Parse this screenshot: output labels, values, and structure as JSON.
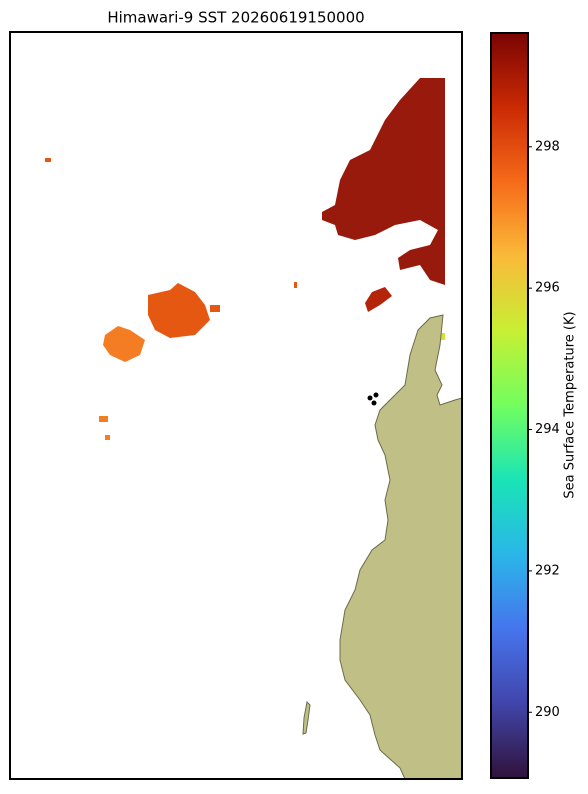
{
  "title": "Himawari-9 SST 20260619150000",
  "colorbar": {
    "label": "Sea Surface Temperature (K)",
    "range": [
      289.07,
      299.61
    ],
    "ticks": [
      290,
      292,
      294,
      296,
      298
    ]
  }
}
